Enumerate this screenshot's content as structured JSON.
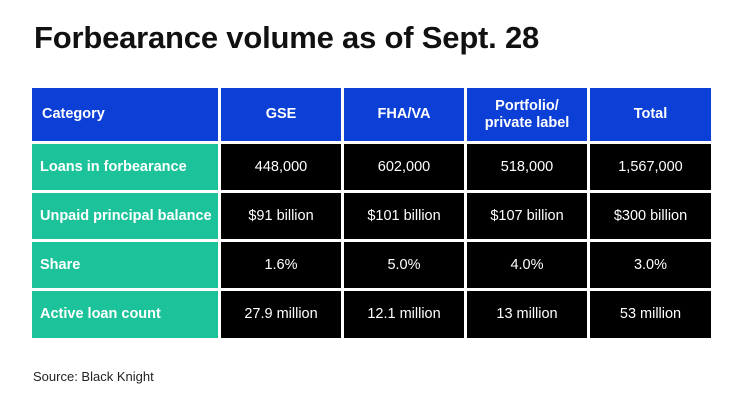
{
  "title": "Forbearance volume as of Sept. 28",
  "chart_data": {
    "type": "table",
    "title": "Forbearance volume as of Sept. 28",
    "columns": [
      "Category",
      "GSE",
      "FHA/VA",
      "Portfolio/\nprivate label",
      "Total"
    ],
    "rows": [
      {
        "label": "Loans in forbearance",
        "values": [
          "448,000",
          "602,000",
          "518,000",
          "1,567,000"
        ]
      },
      {
        "label": "Unpaid principal balance",
        "values": [
          "$91 billion",
          "$101 billion",
          "$107 billion",
          "$300 billion"
        ]
      },
      {
        "label": "Share",
        "values": [
          "1.6%",
          "5.0%",
          "4.0%",
          "3.0%"
        ]
      },
      {
        "label": "Active loan count",
        "values": [
          "27.9 million",
          "12.1 million",
          "13 million",
          "53 million"
        ]
      }
    ]
  },
  "source": "Source: Black Knight",
  "colors": {
    "header": "#0c3fd6",
    "row_header": "#1cc39a",
    "value_cell": "#000000"
  }
}
